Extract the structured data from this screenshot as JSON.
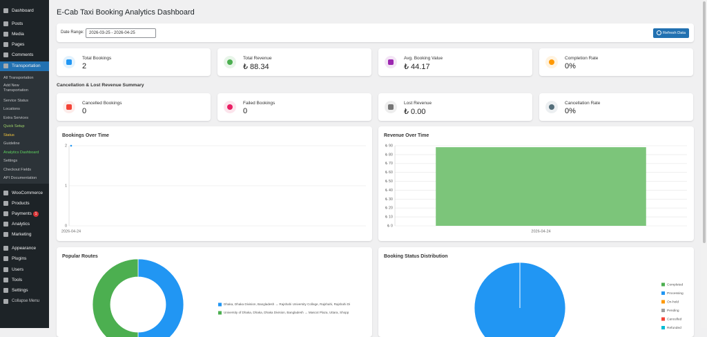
{
  "sidebar": {
    "top": [
      "Dashboard",
      "Posts",
      "Media",
      "Pages",
      "Comments",
      "Transportation"
    ],
    "submenu": [
      "All Transportation",
      "Add New Transportation",
      "Service Status",
      "Locations",
      "Extra Services",
      "Quick Setup",
      "Status",
      "Guideline",
      "Analytics Dashboard",
      "Settings",
      "Checkout Fields",
      "API Documentation"
    ],
    "bottom": [
      "WooCommerce",
      "Products",
      "Payments",
      "Analytics",
      "Marketing",
      "Appearance",
      "Plugins",
      "Users",
      "Tools",
      "Settings",
      "Collapse Menu"
    ],
    "payments_badge": "1"
  },
  "header": {
    "title": "E-Cab Taxi Booking Analytics Dashboard"
  },
  "filter": {
    "label": "Date Range:",
    "value": "2026-03-25 - 2026-04-25",
    "button": "Refresh Data"
  },
  "stats": [
    {
      "label": "Total Bookings",
      "value": "2"
    },
    {
      "label": "Total Revenue",
      "value": "₺ 88.34"
    },
    {
      "label": "Avg. Booking Value",
      "value": "₺ 44.17"
    },
    {
      "label": "Completion Rate",
      "value": "0%"
    }
  ],
  "cancellation": {
    "title": "Cancellation & Lost Revenue Summary",
    "cards": [
      {
        "label": "Cancelled Bookings",
        "value": "0"
      },
      {
        "label": "Failed Bookings",
        "value": "0"
      },
      {
        "label": "Lost Revenue",
        "value": "₺ 0.00"
      },
      {
        "label": "Cancellation Rate",
        "value": "0%"
      }
    ]
  },
  "charts": {
    "bookings": {
      "type": "line",
      "title": "Bookings Over Time",
      "categories": [
        "2026-04-24"
      ],
      "values": [
        2
      ],
      "color": "#2196f3",
      "ylim": [
        0,
        2
      ],
      "yticks": [
        0,
        1,
        2
      ],
      "grid": true
    },
    "revenue": {
      "type": "bar",
      "title": "Revenue Over Time",
      "categories": [
        "2026-04-24"
      ],
      "values": [
        88.34
      ],
      "color": "#7cc57a",
      "ylim": [
        0,
        90
      ],
      "grid": true,
      "yticks": [
        {
          "value": 0,
          "label": "₺ 0"
        },
        {
          "value": 10,
          "label": "₺ 10"
        },
        {
          "value": 20,
          "label": "₺ 20"
        },
        {
          "value": 30,
          "label": "₺ 30"
        },
        {
          "value": 40,
          "label": "₺ 40"
        },
        {
          "value": 50,
          "label": "₺ 50"
        },
        {
          "value": 60,
          "label": "₺ 60"
        },
        {
          "value": 70,
          "label": "₺ 70"
        },
        {
          "value": 80,
          "label": "₺ 80"
        },
        {
          "value": 90,
          "label": "₺ 90"
        }
      ]
    },
    "routes": {
      "type": "doughnut",
      "title": "Popular Routes",
      "categories": [
        "Dhaka, Dhaka Division, Bangladesh → Rajshahi University College, Rajshahi, Rajshahi Di",
        "University of Dhaka, Dhaka, Dhaka Division, Bangladesh → Mascot Plaza, Uttara, Shopp"
      ],
      "values": [
        1,
        1
      ],
      "colors": [
        "#2196f3",
        "#4caf50"
      ]
    },
    "status": {
      "type": "pie",
      "title": "Booking Status Distribution",
      "categories": [
        "Completed",
        "Processing",
        "On-hold",
        "Pending",
        "Cancelled",
        "Refunded"
      ],
      "values": [
        0,
        2,
        0,
        0,
        0,
        0
      ],
      "colors": [
        "#4caf50",
        "#2196f3",
        "#ff9800",
        "#9e9e9e",
        "#f44336",
        "#00bcd4"
      ]
    }
  }
}
